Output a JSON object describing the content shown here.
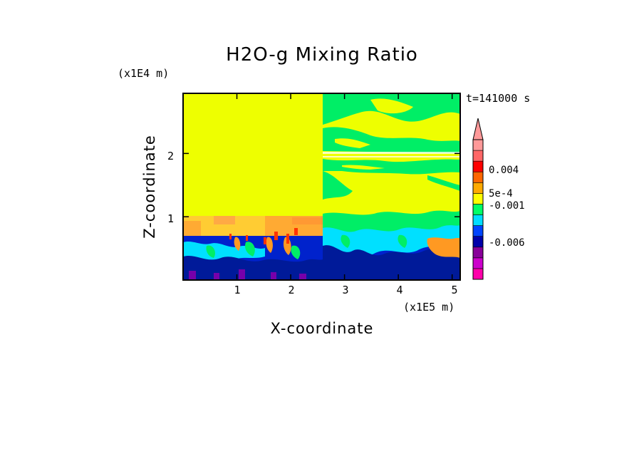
{
  "chart_data": {
    "type": "heatmap",
    "title": "H2O-g Mixing Ratio",
    "xlabel": "X-coordinate",
    "ylabel": "Z-coordinate",
    "x_unit": "(x1E5 m)",
    "y_unit": "(x1E4 m)",
    "time_label": "t=141000 s",
    "xlim": [
      0,
      5.15
    ],
    "ylim": [
      0,
      2.95
    ],
    "x_ticks": [
      "1",
      "2",
      "3",
      "4",
      "5"
    ],
    "y_ticks": [
      "1",
      "2"
    ],
    "colorbar": {
      "levels": [
        "#ff00aa",
        "#cc00cc",
        "#880099",
        "#0000aa",
        "#0044ff",
        "#00ddff",
        "#00ff66",
        "#ffff00",
        "#ffaa00",
        "#ff6600",
        "#ff0000",
        "#ff6666",
        "#ff9999"
      ],
      "labels": [
        "0.004",
        "5e-4",
        "-0.001",
        "-0.006"
      ],
      "extend": "max"
    },
    "regions": [
      {
        "name": "upper-left uniform block",
        "x": [
          0,
          2.6
        ],
        "z": [
          1.0,
          2.95
        ],
        "color": "#eeff00"
      },
      {
        "name": "left boundary layer",
        "x": [
          0,
          2.6
        ],
        "z": [
          0.72,
          1.0
        ],
        "color": "#ffaa00"
      },
      {
        "name": "lower turbulent layer",
        "x": [
          0,
          5.15
        ],
        "z": [
          0,
          0.72
        ],
        "color": "#0000aa"
      },
      {
        "name": "upper-right layered band",
        "x": [
          2.6,
          5.15
        ],
        "z": [
          0.72,
          2.95
        ],
        "color": "#00ff66"
      }
    ]
  }
}
